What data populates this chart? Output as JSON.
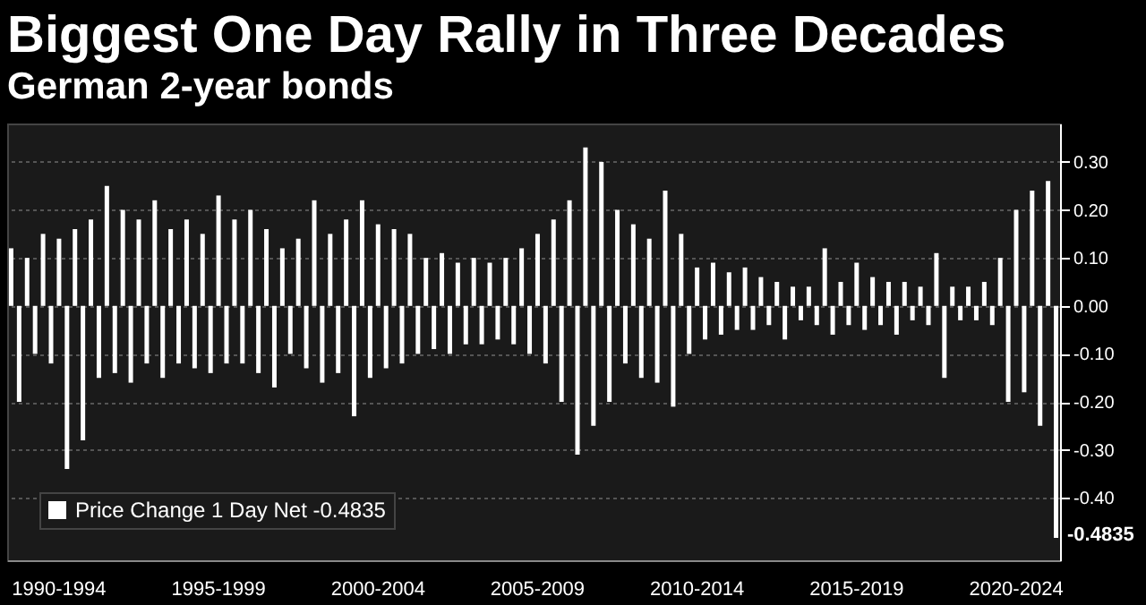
{
  "chart_data": {
    "type": "bar",
    "title": "Biggest One Day Rally in Three Decades",
    "subtitle": "German 2-year bonds",
    "categories": [
      null,
      null,
      null,
      null,
      null,
      null,
      "1990-1994",
      null,
      null,
      null,
      null,
      null,
      null,
      null,
      null,
      null,
      null,
      null,
      null,
      null,
      null,
      null,
      null,
      null,
      null,
      null,
      "1995-1999",
      null,
      null,
      null,
      null,
      null,
      null,
      null,
      null,
      null,
      null,
      null,
      null,
      null,
      null,
      null,
      null,
      null,
      null,
      null,
      "2000-2004",
      null,
      null,
      null,
      null,
      null,
      null,
      null,
      null,
      null,
      null,
      null,
      null,
      null,
      null,
      null,
      null,
      null,
      null,
      null,
      "2005-2009",
      null,
      null,
      null,
      null,
      null,
      null,
      null,
      null,
      null,
      null,
      null,
      null,
      null,
      null,
      null,
      null,
      null,
      null,
      null,
      "2010-2014",
      null,
      null,
      null,
      null,
      null,
      null,
      null,
      null,
      null,
      null,
      null,
      null,
      null,
      null,
      null,
      null,
      null,
      null,
      null,
      "2015-2019",
      null,
      null,
      null,
      null,
      null,
      null,
      null,
      null,
      null,
      null,
      null,
      null,
      null,
      null,
      null,
      null,
      null,
      null,
      null,
      "2020-2024",
      null,
      null,
      null,
      null,
      null
    ],
    "series": [
      {
        "name": "Price Change 1 Day Net -0.4835",
        "color": "#ffffff",
        "values": [
          0.12,
          -0.2,
          0.1,
          -0.1,
          0.15,
          -0.12,
          0.14,
          -0.34,
          0.16,
          -0.28,
          0.18,
          -0.15,
          0.25,
          -0.14,
          0.2,
          -0.16,
          0.18,
          -0.12,
          0.22,
          -0.15,
          0.16,
          -0.12,
          0.18,
          -0.13,
          0.15,
          -0.14,
          0.23,
          -0.12,
          0.18,
          -0.12,
          0.2,
          -0.14,
          0.16,
          -0.17,
          0.12,
          -0.1,
          0.14,
          -0.13,
          0.22,
          -0.16,
          0.15,
          -0.14,
          0.18,
          -0.23,
          0.22,
          -0.15,
          0.17,
          -0.13,
          0.16,
          -0.12,
          0.15,
          -0.1,
          0.1,
          -0.09,
          0.11,
          -0.1,
          0.09,
          -0.08,
          0.1,
          -0.08,
          0.09,
          -0.07,
          0.1,
          -0.08,
          0.12,
          -0.1,
          0.15,
          -0.12,
          0.18,
          -0.2,
          0.22,
          -0.31,
          0.33,
          -0.25,
          0.3,
          -0.2,
          0.2,
          -0.12,
          0.17,
          -0.15,
          0.14,
          -0.16,
          0.24,
          -0.21,
          0.15,
          -0.1,
          0.08,
          -0.07,
          0.09,
          -0.06,
          0.07,
          -0.05,
          0.08,
          -0.05,
          0.06,
          -0.04,
          0.05,
          -0.07,
          0.04,
          -0.03,
          0.04,
          -0.04,
          0.12,
          -0.06,
          0.05,
          -0.04,
          0.09,
          -0.05,
          0.06,
          -0.04,
          0.05,
          -0.06,
          0.05,
          -0.03,
          0.04,
          -0.04,
          0.11,
          -0.15,
          0.04,
          -0.03,
          0.04,
          -0.03,
          0.05,
          -0.04,
          0.1,
          -0.2,
          0.2,
          -0.18,
          0.24,
          -0.25,
          0.26,
          -0.4835
        ]
      }
    ],
    "ylim": [
      -0.53,
      0.38
    ],
    "yticks": [
      {
        "value": 0.3,
        "label": "0.30"
      },
      {
        "value": 0.2,
        "label": "0.20"
      },
      {
        "value": 0.1,
        "label": "0.10"
      },
      {
        "value": 0.0,
        "label": "0.00"
      },
      {
        "value": -0.1,
        "label": "-0.10"
      },
      {
        "value": -0.2,
        "label": "-0.20"
      },
      {
        "value": -0.3,
        "label": "-0.30"
      },
      {
        "value": -0.4,
        "label": "-0.40"
      }
    ],
    "annotations": [
      "-0.4835"
    ],
    "grid": "y",
    "legend": "bottom left"
  }
}
